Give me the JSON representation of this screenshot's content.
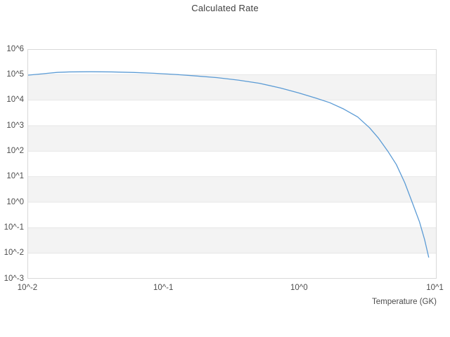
{
  "title": "Calculated Rate",
  "colors": {
    "line": "#5b9bd5",
    "band_gray": "#f3f3f3",
    "band_white": "#ffffff",
    "gridline": "#e7e7e7",
    "plot_border": "#d9d9d9",
    "title_text": "#3f3f3f",
    "tick_text": "#4c4c4c"
  },
  "chart_data": {
    "type": "line",
    "title": "Calculated Rate",
    "xlabel": "Temperature (GK)",
    "ylabel": "",
    "x_scale": "log",
    "y_scale": "log",
    "xlim": [
      0.01,
      10.3
    ],
    "ylim": [
      0.001,
      1000000
    ],
    "grid": "horizontal decade gridlines with alternating white/gray bands, no vertical gridlines",
    "legend": "none",
    "x_ticks": [
      {
        "value": 0.01,
        "label": "10^-2"
      },
      {
        "value": 0.1,
        "label": "10^-1"
      },
      {
        "value": 1,
        "label": "10^0"
      },
      {
        "value": 10,
        "label": "10^1"
      }
    ],
    "y_ticks": [
      {
        "value": 1000000,
        "label": "10^6"
      },
      {
        "value": 100000,
        "label": "10^5"
      },
      {
        "value": 10000,
        "label": "10^4"
      },
      {
        "value": 1000,
        "label": "10^3"
      },
      {
        "value": 100,
        "label": "10^2"
      },
      {
        "value": 10,
        "label": "10^1"
      },
      {
        "value": 1,
        "label": "10^0"
      },
      {
        "value": 0.1,
        "label": "10^-1"
      },
      {
        "value": 0.01,
        "label": "10^-2"
      },
      {
        "value": 0.001,
        "label": "10^-3"
      }
    ],
    "series": [
      {
        "name": "Calculated Rate",
        "x": [
          0.01,
          0.0127,
          0.0167,
          0.0204,
          0.0292,
          0.0417,
          0.0597,
          0.0855,
          0.122,
          0.175,
          0.25,
          0.357,
          0.51,
          0.73,
          1.0,
          1.33,
          1.68,
          2.13,
          2.7,
          3.3,
          3.85,
          4.5,
          5.2,
          6.0,
          6.8,
          7.7,
          8.4,
          9.0
        ],
        "y": [
          95000.0,
          107000.0,
          123000.0,
          128000.0,
          130000.0,
          128000.0,
          122000.0,
          113000.0,
          102000.0,
          89000.0,
          76000.0,
          61000.0,
          46000.0,
          30000.0,
          19000.0,
          12000.0,
          8000.0,
          4500.0,
          2200.0,
          830.0,
          320.0,
          100.0,
          30.0,
          5.8,
          1.0,
          0.17,
          0.034,
          0.007
        ]
      }
    ]
  }
}
